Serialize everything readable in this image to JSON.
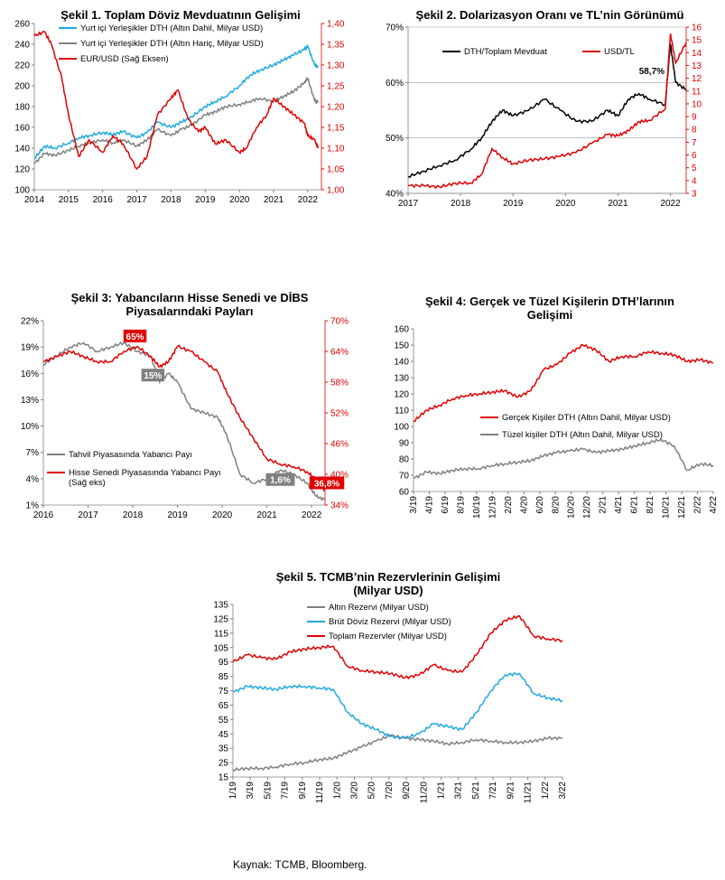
{
  "source": "Kaynak: TCMB, Bloomberg.",
  "chart_data": [
    {
      "id": "c1",
      "type": "line",
      "title": "Şekil 1. Toplam Döviz Mevduatının Gelişimi",
      "x_ticks": [
        "2014",
        "2015",
        "2016",
        "2017",
        "2018",
        "2019",
        "2020",
        "2021",
        "2022"
      ],
      "xlim": [
        2014.0,
        2022.4
      ],
      "ylim": [
        100,
        260
      ],
      "y_ticks": [
        "100",
        "120",
        "140",
        "160",
        "180",
        "200",
        "220",
        "240",
        "260"
      ],
      "y2lim": [
        1.0,
        1.4
      ],
      "y2_ticks": [
        "1,00",
        "1,05",
        "1,10",
        "1,15",
        "1,20",
        "1,25",
        "1,30",
        "1,35",
        "1,40"
      ],
      "grid": false,
      "legend": "top",
      "series": [
        {
          "name": "Yurt içi Yerleşikler DTH (Altın Dahil, Milyar USD)",
          "color": "#1fa9e1",
          "axis": "left",
          "x": [
            2014.0,
            2014.3,
            2014.6,
            2015.0,
            2015.3,
            2015.6,
            2016.0,
            2016.3,
            2016.6,
            2017.0,
            2017.3,
            2017.6,
            2018.0,
            2018.3,
            2018.6,
            2019.0,
            2019.3,
            2019.6,
            2020.0,
            2020.3,
            2020.6,
            2021.0,
            2021.3,
            2021.6,
            2021.9,
            2022.0,
            2022.2,
            2022.3
          ],
          "y": [
            130,
            142,
            140,
            145,
            150,
            152,
            155,
            153,
            156,
            150,
            155,
            165,
            160,
            165,
            170,
            180,
            185,
            190,
            200,
            210,
            215,
            220,
            225,
            230,
            235,
            238,
            220,
            218
          ]
        },
        {
          "name": "Yurt içi Yerleşikler DTH (Altın Hariç, Milyar USD)",
          "color": "#808080",
          "axis": "left",
          "x": [
            2014.0,
            2014.3,
            2014.6,
            2015.0,
            2015.3,
            2015.6,
            2016.0,
            2016.3,
            2016.6,
            2017.0,
            2017.3,
            2017.6,
            2018.0,
            2018.3,
            2018.6,
            2019.0,
            2019.3,
            2019.6,
            2020.0,
            2020.3,
            2020.6,
            2021.0,
            2021.3,
            2021.6,
            2021.9,
            2022.0,
            2022.2,
            2022.3
          ],
          "y": [
            125,
            135,
            133,
            138,
            142,
            145,
            148,
            145,
            148,
            142,
            148,
            158,
            152,
            158,
            162,
            172,
            175,
            180,
            182,
            185,
            188,
            185,
            190,
            195,
            203,
            207,
            186,
            184
          ]
        },
        {
          "name": "EUR/USD (Sağ Eksen)",
          "color": "#e00000",
          "axis": "right",
          "x": [
            2014.0,
            2014.3,
            2014.5,
            2014.8,
            2015.0,
            2015.3,
            2015.6,
            2016.0,
            2016.3,
            2016.6,
            2017.0,
            2017.3,
            2017.6,
            2018.0,
            2018.2,
            2018.5,
            2018.8,
            2019.0,
            2019.3,
            2019.6,
            2020.0,
            2020.2,
            2020.5,
            2020.8,
            2021.0,
            2021.3,
            2021.6,
            2021.9,
            2022.0,
            2022.2,
            2022.3
          ],
          "y": [
            1.37,
            1.38,
            1.35,
            1.27,
            1.18,
            1.08,
            1.12,
            1.09,
            1.13,
            1.11,
            1.05,
            1.08,
            1.18,
            1.22,
            1.24,
            1.17,
            1.14,
            1.15,
            1.11,
            1.12,
            1.09,
            1.1,
            1.15,
            1.18,
            1.22,
            1.2,
            1.18,
            1.16,
            1.13,
            1.12,
            1.1
          ]
        }
      ]
    },
    {
      "id": "c2",
      "type": "line",
      "title": "Şekil 2. Dolarizasyon Oranı ve TL’nin Görünümü",
      "x_ticks": [
        "2017",
        "2018",
        "2019",
        "2020",
        "2021",
        "2022"
      ],
      "xlim": [
        2017.0,
        2022.3
      ],
      "ylim": [
        40,
        70
      ],
      "y_ticks": [
        "40%",
        "50%",
        "60%",
        "70%"
      ],
      "y2lim": [
        3,
        16
      ],
      "y2_ticks": [
        "3",
        "4",
        "5",
        "6",
        "7",
        "8",
        "9",
        "10",
        "11",
        "12",
        "13",
        "14",
        "15",
        "16"
      ],
      "grid": true,
      "legend": "top",
      "annotations": [
        {
          "text": "58,7%"
        }
      ],
      "series": [
        {
          "name": "DTH/Toplam Mevduat",
          "color": "#000000",
          "axis": "left",
          "x": [
            2017.0,
            2017.3,
            2017.6,
            2017.9,
            2018.2,
            2018.4,
            2018.6,
            2018.8,
            2019.0,
            2019.3,
            2019.6,
            2019.9,
            2020.2,
            2020.5,
            2020.8,
            2021.0,
            2021.2,
            2021.4,
            2021.6,
            2021.9,
            2022.0,
            2022.1,
            2022.3
          ],
          "y": [
            43,
            44,
            45,
            46,
            48,
            50,
            53,
            55,
            54,
            55,
            57,
            55,
            53,
            53,
            55,
            54,
            57,
            58,
            57,
            56,
            67,
            60,
            58.7
          ]
        },
        {
          "name": "USD/TL",
          "color": "#e00000",
          "axis": "right",
          "x": [
            2017.0,
            2017.3,
            2017.6,
            2017.9,
            2018.2,
            2018.4,
            2018.6,
            2018.8,
            2019.0,
            2019.3,
            2019.6,
            2019.9,
            2020.2,
            2020.5,
            2020.8,
            2021.0,
            2021.2,
            2021.4,
            2021.6,
            2021.9,
            2022.0,
            2022.1,
            2022.3
          ],
          "y": [
            3.6,
            3.6,
            3.5,
            3.8,
            3.8,
            4.5,
            6.5,
            5.8,
            5.3,
            5.6,
            5.7,
            5.9,
            6.2,
            6.9,
            7.6,
            7.5,
            7.9,
            8.6,
            8.7,
            9.6,
            15.5,
            13.2,
            14.8
          ]
        }
      ]
    },
    {
      "id": "c3",
      "type": "line",
      "title": "Şekil 3: Yabancıların Hisse Senedi ve DİBS Piyasalarındaki Payları",
      "title_lines": [
        "Şekil 3: Yabancıların Hisse Senedi ve DİBS",
        "Piyasalarındaki Payları"
      ],
      "x_ticks": [
        "2016",
        "2017",
        "2018",
        "2019",
        "2020",
        "2021",
        "2022"
      ],
      "xlim": [
        2016.0,
        2022.3
      ],
      "ylim": [
        1,
        22
      ],
      "y_ticks": [
        "1%",
        "4%",
        "7%",
        "10%",
        "13%",
        "16%",
        "19%",
        "22%"
      ],
      "y2lim": [
        34,
        70
      ],
      "y2_ticks": [
        "34%",
        "40%",
        "46%",
        "52%",
        "58%",
        "64%",
        "70%"
      ],
      "grid": false,
      "legend": "bottom-left",
      "annotations": [
        {
          "text": "65%"
        },
        {
          "text": "15%"
        },
        {
          "text": "1,6%"
        },
        {
          "text": "36,8%"
        }
      ],
      "series": [
        {
          "name": "Tahvil Piyasasında Yabancı Payı",
          "color": "#808080",
          "axis": "left",
          "x": [
            2016.0,
            2016.3,
            2016.6,
            2016.9,
            2017.2,
            2017.5,
            2017.8,
            2018.1,
            2018.4,
            2018.6,
            2018.8,
            2019.0,
            2019.3,
            2019.6,
            2019.9,
            2020.1,
            2020.4,
            2020.7,
            2021.0,
            2021.3,
            2021.6,
            2021.9,
            2022.1,
            2022.3
          ],
          "y": [
            17,
            18,
            19,
            19.5,
            18.5,
            19,
            19.5,
            18.5,
            18,
            15,
            16,
            15,
            12,
            11.5,
            11,
            9,
            4.5,
            3.5,
            4,
            5,
            4.5,
            3.5,
            2,
            1.6
          ]
        },
        {
          "name": "Hisse Senedi Piyasasında Yabancı Payı (Sağ eks)",
          "color": "#e00000",
          "axis": "right",
          "x": [
            2016.0,
            2016.3,
            2016.6,
            2016.9,
            2017.2,
            2017.5,
            2017.8,
            2018.1,
            2018.4,
            2018.6,
            2018.8,
            2019.0,
            2019.3,
            2019.6,
            2019.9,
            2020.1,
            2020.4,
            2020.7,
            2021.0,
            2021.3,
            2021.6,
            2021.9,
            2022.1,
            2022.3
          ],
          "y": [
            62,
            63,
            64,
            63,
            62,
            62,
            64,
            65,
            63,
            61,
            62,
            65,
            64,
            62,
            60,
            56,
            51,
            47,
            43,
            42,
            41.5,
            40.5,
            39,
            36.8
          ]
        }
      ]
    },
    {
      "id": "c4",
      "type": "line",
      "title": "Şekil 4: Gerçek ve Tüzel Kişilerin DTH’larının Gelişimi",
      "title_lines": [
        "Şekil 4: Gerçek ve Tüzel Kişilerin DTH’larının",
        "Gelişimi"
      ],
      "x_ticks": [
        "3/19",
        "4/19",
        "6/19",
        "8/19",
        "10/19",
        "12/19",
        "2/20",
        "4/20",
        "6/20",
        "8/20",
        "10/20",
        "12/20",
        "2/21",
        "4/21",
        "6/21",
        "8/21",
        "10/21",
        "12/21",
        "2/22",
        "4/22"
      ],
      "ylim": [
        60,
        160
      ],
      "y_ticks": [
        "60",
        "70",
        "80",
        "90",
        "100",
        "110",
        "120",
        "130",
        "140",
        "150",
        "160"
      ],
      "grid": false,
      "legend": "middle",
      "series": [
        {
          "name": "Gerçek Kişiler DTH (Altın Dahil, Milyar USD)",
          "color": "#e00000",
          "axis": "left",
          "y": [
            103,
            110,
            113,
            117,
            119,
            120,
            121,
            122,
            118,
            122,
            135,
            138,
            145,
            150,
            147,
            140,
            143,
            143,
            146,
            145,
            144,
            140,
            141,
            139
          ]
        },
        {
          "name": "Tüzel kişiler DTH (Altın Dahil, Milyar USD)",
          "color": "#808080",
          "axis": "left",
          "y": [
            68,
            72,
            71,
            73,
            74,
            74,
            76,
            77,
            78,
            79,
            82,
            84,
            85,
            86,
            84,
            85,
            86,
            88,
            90,
            92,
            88,
            73,
            77,
            76
          ]
        }
      ]
    },
    {
      "id": "c5",
      "type": "line",
      "title": "Şekil 5. TCMB’nin Rezervlerinin Gelişimi (Milyar USD)",
      "title_lines": [
        "Şekil 5. TCMB’nin Rezervlerinin Gelişimi",
        "(Milyar USD)"
      ],
      "x_ticks": [
        "1/19",
        "3/19",
        "5/19",
        "7/19",
        "9/19",
        "11/19",
        "1/20",
        "3/20",
        "5/20",
        "7/20",
        "9/20",
        "11/20",
        "1/21",
        "3/21",
        "5/21",
        "7/21",
        "9/21",
        "11/21",
        "1/22",
        "3/22"
      ],
      "ylim": [
        15,
        135
      ],
      "y_ticks": [
        "15",
        "25",
        "35",
        "45",
        "55",
        "65",
        "75",
        "85",
        "95",
        "105",
        "115",
        "125",
        "135"
      ],
      "grid": false,
      "legend": "top",
      "series": [
        {
          "name": "Altın Rezervi (Milyar USD)",
          "color": "#808080",
          "axis": "left",
          "y": [
            20,
            21,
            21,
            22,
            24,
            25,
            27,
            28,
            32,
            36,
            40,
            44,
            42,
            41,
            40,
            38,
            39,
            41,
            40,
            39,
            39,
            40,
            42,
            42
          ]
        },
        {
          "name": "Brüt Döviz Rezervi (Milyar USD)",
          "color": "#1fa9e1",
          "axis": "left",
          "y": [
            74,
            78,
            77,
            76,
            78,
            78,
            77,
            76,
            60,
            52,
            48,
            43,
            42,
            45,
            52,
            50,
            48,
            60,
            75,
            86,
            87,
            73,
            70,
            68
          ]
        },
        {
          "name": "Toplam Rezervler (Milyar USD)",
          "color": "#e00000",
          "axis": "left",
          "y": [
            95,
            100,
            98,
            97,
            102,
            104,
            105,
            106,
            92,
            89,
            88,
            87,
            84,
            86,
            93,
            89,
            88,
            100,
            115,
            124,
            127,
            113,
            111,
            110
          ]
        }
      ]
    }
  ]
}
